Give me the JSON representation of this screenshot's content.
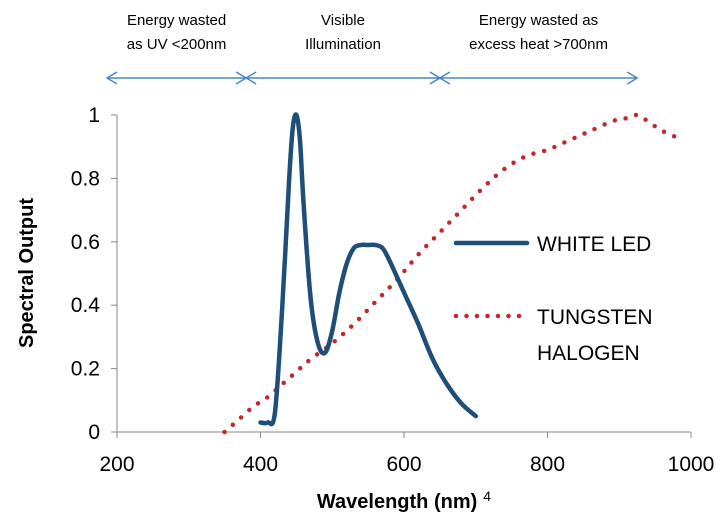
{
  "chart_data": {
    "type": "line",
    "xlabel": "Wavelength (nm)",
    "xlabel_footnote": "4",
    "ylabel": "Spectral Output",
    "xlim": [
      200,
      1000
    ],
    "ylim": [
      0,
      1
    ],
    "x_ticks": [
      "200",
      "400",
      "600",
      "800",
      "1000"
    ],
    "y_ticks": [
      "0",
      "0.2",
      "0.4",
      "0.6",
      "0.8",
      "1"
    ],
    "x_tick_values": [
      200,
      400,
      600,
      800,
      1000
    ],
    "y_tick_values": [
      0,
      0.2,
      0.4,
      0.6,
      0.8,
      1
    ],
    "grid": false,
    "legend_position": "right",
    "bands": [
      {
        "lines": [
          "Energy wasted",
          "as UV <200nm"
        ],
        "from": 200,
        "to": 380
      },
      {
        "lines": [
          "Visible",
          "Illumination"
        ],
        "from": 380,
        "to": 650
      },
      {
        "lines": [
          "Energy wasted as",
          "excess heat >700nm"
        ],
        "from": 650,
        "to": 925
      }
    ],
    "series": [
      {
        "name": "WHITE LED",
        "color": "#1f4e79",
        "style": "solid",
        "x": [
          400,
          410,
          420,
          430,
          440,
          445,
          450,
          455,
          460,
          470,
          480,
          490,
          500,
          510,
          520,
          530,
          540,
          550,
          560,
          570,
          580,
          600,
          620,
          640,
          660,
          680,
          700
        ],
        "y": [
          0.03,
          0.03,
          0.06,
          0.38,
          0.8,
          0.96,
          1.0,
          0.92,
          0.72,
          0.42,
          0.28,
          0.25,
          0.32,
          0.44,
          0.53,
          0.58,
          0.59,
          0.59,
          0.59,
          0.58,
          0.54,
          0.44,
          0.34,
          0.23,
          0.15,
          0.09,
          0.05
        ]
      },
      {
        "name": "TUNGSTEN HALOGEN",
        "name_lines": [
          "TUNGSTEN",
          "HALOGEN"
        ],
        "color": "#c0282d",
        "style": "dotted",
        "x": [
          350,
          370,
          390,
          410,
          430,
          450,
          470,
          500,
          530,
          560,
          590,
          620,
          650,
          680,
          710,
          740,
          770,
          800,
          830,
          860,
          890,
          910,
          925,
          940,
          960,
          990
        ],
        "y": [
          0.0,
          0.04,
          0.08,
          0.11,
          0.15,
          0.19,
          0.23,
          0.28,
          0.34,
          0.41,
          0.48,
          0.56,
          0.63,
          0.7,
          0.77,
          0.83,
          0.87,
          0.89,
          0.92,
          0.95,
          0.98,
          0.99,
          1.0,
          0.98,
          0.95,
          0.92
        ]
      }
    ]
  }
}
